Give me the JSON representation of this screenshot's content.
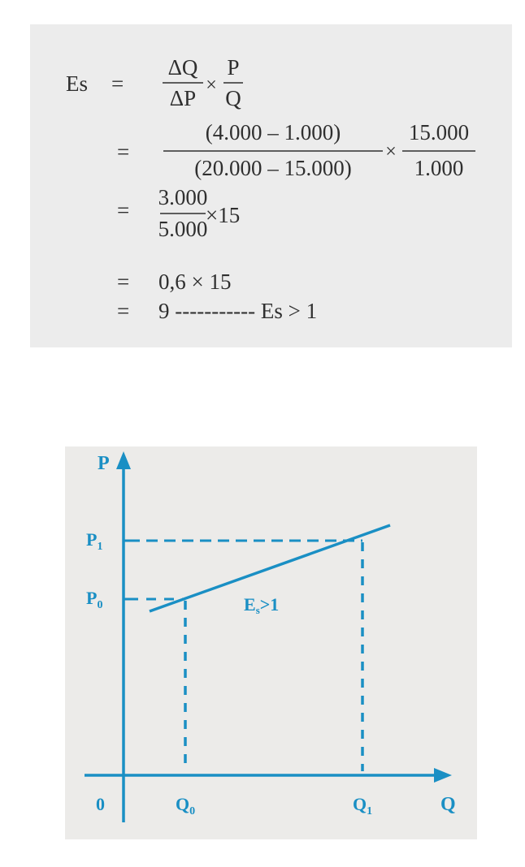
{
  "formula": {
    "lhs": "Es",
    "equals": "=",
    "line1": {
      "frac1_num": "ΔQ",
      "frac1_den": "ΔP",
      "times": "×",
      "frac2_num": "P",
      "frac2_den": "Q"
    },
    "line2": {
      "frac1_num": "(4.000 – 1.000)",
      "frac1_den": "(20.000 – 15.000)",
      "times": "×",
      "frac2_num": "15.000",
      "frac2_den": "1.000"
    },
    "line3": {
      "frac_num": "3.000",
      "frac_den": "5.000",
      "rest": "×15"
    },
    "line4": "0,6 × 15",
    "line5": "9 ----------- Es > 1"
  },
  "graph": {
    "y_axis_label": "P",
    "x_axis_label": "Q",
    "origin_label": "0",
    "p1_label": "P",
    "p1_sub": "1",
    "p0_label": "P",
    "p0_sub": "0",
    "q0_label": "Q",
    "q0_sub": "0",
    "q1_label": "Q",
    "q1_sub": "1",
    "curve_label_main": "E",
    "curve_label_sub": "s",
    "curve_label_rest": ">1",
    "color": "#1a8fc4"
  }
}
